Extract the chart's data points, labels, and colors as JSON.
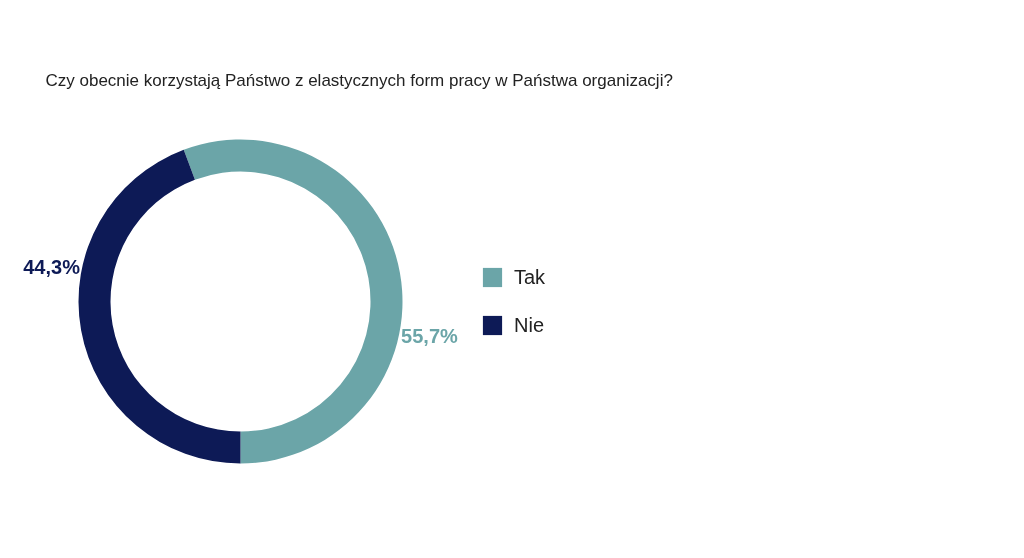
{
  "chart_data": {
    "type": "donut",
    "title": "Czy obecnie korzystają Państwo z elastycznych form pracy w Państwa organizacji?",
    "categories": [
      "Tak",
      "Nie"
    ],
    "values": [
      55.7,
      44.3
    ],
    "colors": [
      "#6ba5a8",
      "#0d1a56"
    ],
    "value_labels": [
      "55,7%",
      "44,3%"
    ],
    "legend": "right"
  }
}
